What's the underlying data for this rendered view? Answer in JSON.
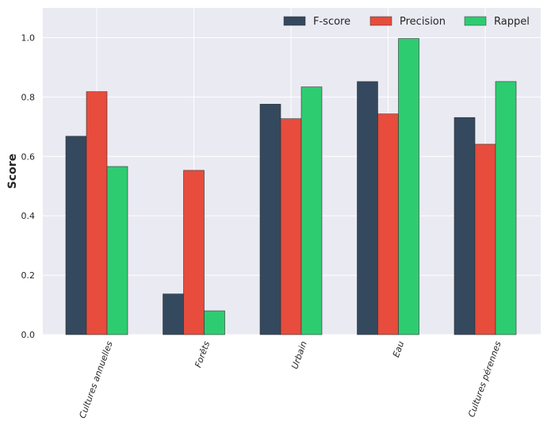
{
  "chart_data": {
    "type": "bar",
    "title": "",
    "xlabel": "",
    "ylabel": "Score",
    "ylim": [
      0,
      1.1
    ],
    "yticks": [
      0.0,
      0.2,
      0.4,
      0.6,
      0.8,
      1.0
    ],
    "ytick_labels": [
      "0.0",
      "0.2",
      "0.4",
      "0.6",
      "0.8",
      "1.0"
    ],
    "grid": true,
    "legend_position": "top-right",
    "categories": [
      "Cultures annuelles",
      "Forêts",
      "Urbain",
      "Eau",
      "Cultures pérennes"
    ],
    "series": [
      {
        "name": "F-score",
        "color": "#34495e",
        "values": [
          0.668,
          0.137,
          0.776,
          0.852,
          0.731
        ]
      },
      {
        "name": "Precision",
        "color": "#e74c3c",
        "values": [
          0.818,
          0.553,
          0.727,
          0.743,
          0.641
        ]
      },
      {
        "name": "Rappel",
        "color": "#2ecc71",
        "values": [
          0.566,
          0.08,
          0.834,
          0.997,
          0.852
        ]
      }
    ]
  }
}
